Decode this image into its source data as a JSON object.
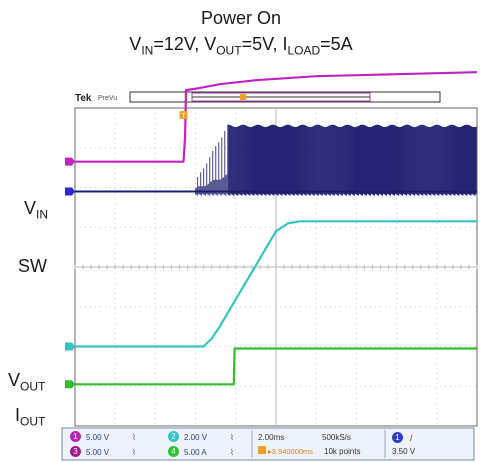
{
  "chart_data": {
    "type": "line",
    "title": "Power On",
    "subtitle": "VIN=12V, VOUT=5V, ILOAD=5A",
    "subtitle_parts": [
      {
        "main": "V",
        "sub": "IN",
        "rest": "=12V, "
      },
      {
        "main": "V",
        "sub": "OUT",
        "rest": "=5V, "
      },
      {
        "main": "I",
        "sub": "LOAD",
        "rest": "=5A"
      }
    ],
    "grid": true,
    "time_per_div": "2.00ms",
    "sample_rate": "500kS/s",
    "record_length": "10k points",
    "trigger_level": "3.50 V",
    "trigger_position": "3.940000ms",
    "scope_brand": "Tek",
    "scope_mode": "PreVu",
    "channels": [
      {
        "number": "1",
        "label_main": "V",
        "label_sub": "IN",
        "scale": "5.00 V",
        "color": "#b823b8"
      },
      {
        "number": "2",
        "label_main": "V",
        "label_sub": "OUT",
        "scale": "2.00 V",
        "color": "#36c3c3"
      },
      {
        "number": "3",
        "label_main": "SW",
        "label_sub": "",
        "scale": "5.00 V",
        "color": "#a8168f"
      },
      {
        "number": "4",
        "label_main": "I",
        "label_sub": "OUT",
        "scale": "5.00 A",
        "color": "#2fbf2f"
      }
    ],
    "series": [
      {
        "name": "VIN",
        "color": "#c024c0",
        "x": [
          0,
          2.7,
          2.74,
          2.76,
          3.1,
          3.6,
          4.5,
          6.0,
          8.0,
          10.0
        ],
        "y": [
          2.65,
          2.65,
          3.3,
          4.45,
          4.5,
          4.6,
          4.7,
          4.8,
          4.85,
          4.9
        ]
      },
      {
        "name": "VOUT",
        "color": "#36c3c3",
        "x": [
          0,
          3.2,
          3.4,
          3.6,
          5.0,
          5.3,
          5.6,
          10.0
        ],
        "y": [
          -2.0,
          -2.0,
          -1.8,
          -1.5,
          0.9,
          1.1,
          1.15,
          1.15
        ]
      },
      {
        "name": "IOUT",
        "color": "#2fbf2f",
        "x": [
          0,
          3.95,
          3.96,
          3.97,
          10.0
        ],
        "y": [
          -2.95,
          -2.95,
          -2.5,
          -2.05,
          -2.05
        ]
      }
    ],
    "switching": {
      "name": "SW",
      "color": "#1c1c6e",
      "baseline": 1.9,
      "high": 3.55,
      "start": 3.0,
      "full": 3.8,
      "end": 10.0
    }
  },
  "labels": {
    "vin": {
      "main": "V",
      "sub": "IN"
    },
    "sw": {
      "main": "SW",
      "sub": ""
    },
    "vout": {
      "main": "V",
      "sub": "OUT"
    },
    "iout": {
      "main": "I",
      "sub": "OUT"
    }
  },
  "colors": {
    "grid": "#c9c9c9",
    "frame": "#6a6a6a",
    "panel": "#eef3fb"
  }
}
